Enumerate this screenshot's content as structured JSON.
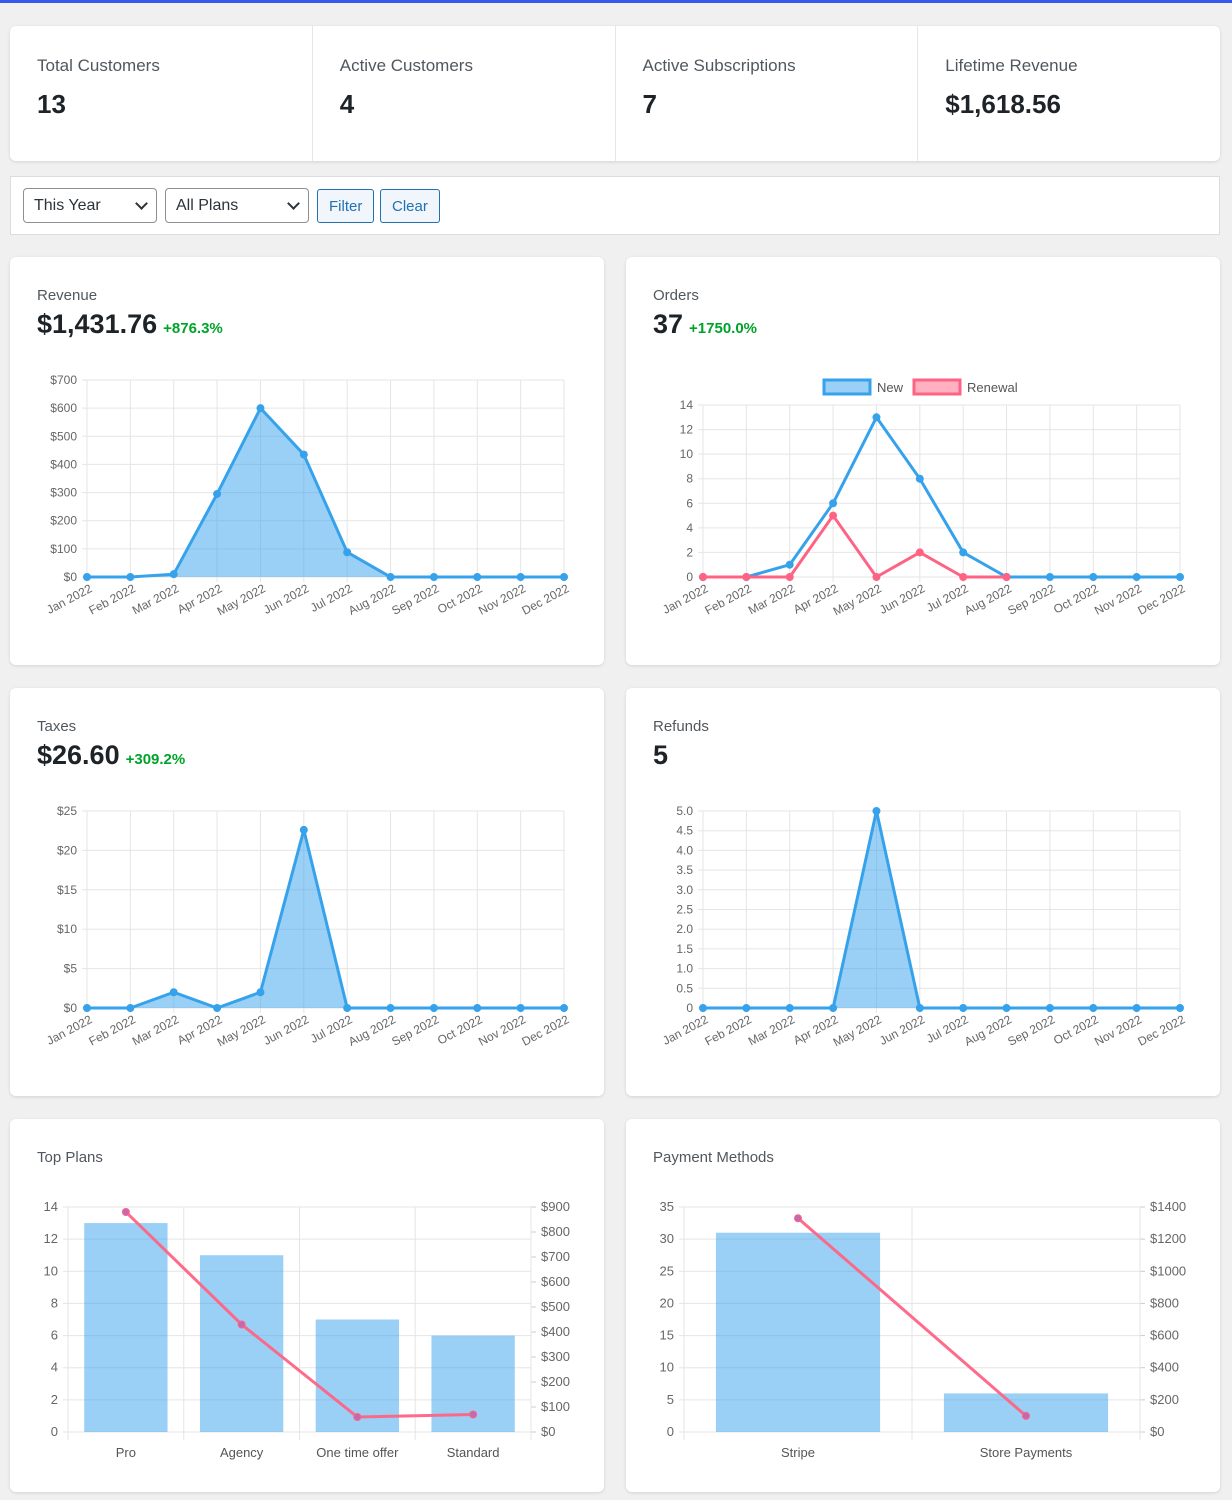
{
  "stats": [
    {
      "label": "Total Customers",
      "value": "13"
    },
    {
      "label": "Active Customers",
      "value": "4"
    },
    {
      "label": "Active Subscriptions",
      "value": "7"
    },
    {
      "label": "Lifetime Revenue",
      "value": "$1,618.56"
    }
  ],
  "filters": {
    "period": "This Year",
    "plan": "All Plans",
    "filter_label": "Filter",
    "clear_label": "Clear"
  },
  "colors": {
    "blue": "#36a2eb",
    "pink": "#ff6384",
    "purple": "#9b59b6",
    "green": "#00a32a"
  },
  "cards": {
    "revenue": {
      "title": "Revenue",
      "value": "$1,431.76",
      "change": "+876.3%"
    },
    "orders": {
      "title": "Orders",
      "value": "37",
      "change": "+1750.0%"
    },
    "taxes": {
      "title": "Taxes",
      "value": "$26.60",
      "change": "+309.2%"
    },
    "refunds": {
      "title": "Refunds",
      "value": "5"
    },
    "top_plans": {
      "title": "Top Plans"
    },
    "payment_methods": {
      "title": "Payment Methods"
    }
  },
  "chart_data": [
    {
      "id": "revenue",
      "type": "area",
      "categories": [
        "Jan 2022",
        "Feb 2022",
        "Mar 2022",
        "Apr 2022",
        "May 2022",
        "Jun 2022",
        "Jul 2022",
        "Aug 2022",
        "Sep 2022",
        "Oct 2022",
        "Nov 2022",
        "Dec 2022"
      ],
      "series": [
        {
          "values": [
            0,
            0,
            10,
            295,
            600,
            435,
            88,
            0,
            0,
            0,
            0,
            0
          ]
        }
      ],
      "ylim": [
        0,
        700
      ],
      "yticks": [
        "$0",
        "$100",
        "$200",
        "$300",
        "$400",
        "$500",
        "$600",
        "$700"
      ],
      "grid": true
    },
    {
      "id": "orders",
      "type": "line",
      "categories": [
        "Jan 2022",
        "Feb 2022",
        "Mar 2022",
        "Apr 2022",
        "May 2022",
        "Jun 2022",
        "Jul 2022",
        "Aug 2022",
        "Sep 2022",
        "Oct 2022",
        "Nov 2022",
        "Dec 2022"
      ],
      "series": [
        {
          "name": "New",
          "values": [
            0,
            0,
            1,
            6,
            13,
            8,
            2,
            0,
            0,
            0,
            0,
            0
          ]
        },
        {
          "name": "Renewal",
          "values": [
            0,
            0,
            0,
            5,
            0,
            2,
            0,
            0,
            null,
            null,
            null,
            null
          ]
        }
      ],
      "ylim": [
        0,
        14
      ],
      "yticks": [
        "0",
        "2",
        "4",
        "6",
        "8",
        "10",
        "12",
        "14"
      ],
      "legend": "top",
      "grid": true
    },
    {
      "id": "taxes",
      "type": "area",
      "categories": [
        "Jan 2022",
        "Feb 2022",
        "Mar 2022",
        "Apr 2022",
        "May 2022",
        "Jun 2022",
        "Jul 2022",
        "Aug 2022",
        "Sep 2022",
        "Oct 2022",
        "Nov 2022",
        "Dec 2022"
      ],
      "series": [
        {
          "values": [
            0,
            0,
            2,
            0,
            2,
            22.6,
            0,
            0,
            0,
            0,
            0,
            0
          ]
        }
      ],
      "ylim": [
        0,
        25
      ],
      "yticks": [
        "$0",
        "$5",
        "$10",
        "$15",
        "$20",
        "$25"
      ],
      "grid": true
    },
    {
      "id": "refunds",
      "type": "area",
      "categories": [
        "Jan 2022",
        "Feb 2022",
        "Mar 2022",
        "Apr 2022",
        "May 2022",
        "Jun 2022",
        "Jul 2022",
        "Aug 2022",
        "Sep 2022",
        "Oct 2022",
        "Nov 2022",
        "Dec 2022"
      ],
      "series": [
        {
          "values": [
            0,
            0,
            0,
            0,
            5,
            0,
            0,
            0,
            0,
            0,
            0,
            0
          ]
        }
      ],
      "ylim": [
        0,
        5
      ],
      "yticks": [
        "0",
        "0.5",
        "1.0",
        "1.5",
        "2.0",
        "2.5",
        "3.0",
        "3.5",
        "4.0",
        "4.5",
        "5.0"
      ],
      "grid": true
    },
    {
      "id": "top_plans",
      "type": "bar",
      "categories": [
        "Pro",
        "Agency",
        "One time offer",
        "Standard"
      ],
      "series": [
        {
          "values": [
            13,
            11,
            7,
            6
          ]
        },
        {
          "type": "line",
          "axis": "right",
          "values": [
            880,
            430,
            60,
            70
          ]
        }
      ],
      "ylim": [
        0,
        14
      ],
      "yticks": [
        "0",
        "2",
        "4",
        "6",
        "8",
        "10",
        "12",
        "14"
      ],
      "y2lim": [
        0,
        900
      ],
      "y2ticks": [
        "$0",
        "$100",
        "$200",
        "$300",
        "$400",
        "$500",
        "$600",
        "$700",
        "$800",
        "$900"
      ],
      "grid": true
    },
    {
      "id": "payment_methods",
      "type": "bar",
      "categories": [
        "Stripe",
        "Store Payments"
      ],
      "series": [
        {
          "values": [
            31,
            6
          ]
        },
        {
          "type": "line",
          "axis": "right",
          "values": [
            1330,
            100
          ]
        }
      ],
      "ylim": [
        0,
        35
      ],
      "yticks": [
        "0",
        "5",
        "10",
        "15",
        "20",
        "25",
        "30",
        "35"
      ],
      "y2lim": [
        0,
        1400
      ],
      "y2ticks": [
        "$0",
        "$200",
        "$400",
        "$600",
        "$800",
        "$1000",
        "$1200",
        "$1400"
      ],
      "grid": true
    }
  ]
}
